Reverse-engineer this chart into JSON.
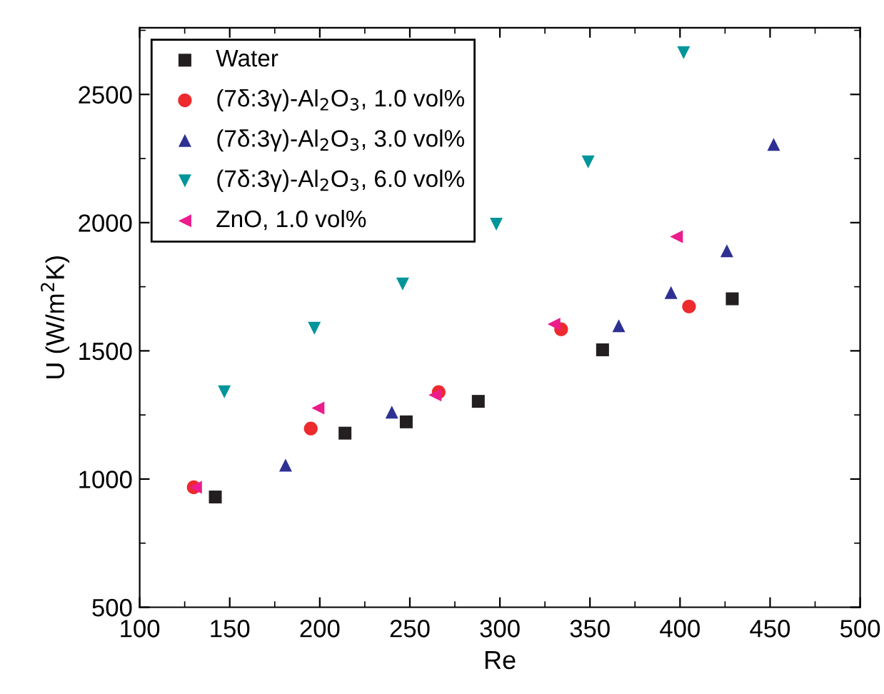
{
  "chart_data": {
    "type": "scatter",
    "xlabel": "Re",
    "ylabel": "U (W/m$^{2}$K)",
    "xlim": [
      100,
      500
    ],
    "xticks": [
      100,
      150,
      200,
      250,
      300,
      350,
      400,
      450,
      500
    ],
    "ylim": [
      500,
      2760
    ],
    "yticks": [
      500,
      1000,
      1500,
      2000,
      2500
    ],
    "grid": false,
    "legend": "top left",
    "series": [
      {
        "name": "Water",
        "color": "#231f20",
        "marker": "square",
        "x": [
          142,
          214,
          248,
          288,
          357,
          429
        ],
        "values": [
          930,
          1179,
          1223,
          1303,
          1504,
          1703
        ]
      },
      {
        "name": "(7δ:3γ)-Al$_{2}$O$_{3}$, 1.0 vol%",
        "color": "#ed2a2e",
        "marker": "circle",
        "x": [
          130,
          195,
          266,
          334,
          405
        ],
        "values": [
          968,
          1197,
          1339,
          1584,
          1673
        ]
      },
      {
        "name": "(7δ:3γ)-Al$_{2}$O$_{3}$, 3.0 vol%",
        "color": "#2e3192",
        "marker": "triangle",
        "x": [
          181,
          240,
          366,
          395,
          426,
          452
        ],
        "values": [
          1054,
          1261,
          1598,
          1727,
          1890,
          2305
        ]
      },
      {
        "name": "(7δ:3γ)-Al$_{2}$O$_{3}$, 6.0 vol%",
        "color": "#00959a",
        "marker": "triangle_down",
        "x": [
          147,
          197,
          246,
          298,
          349,
          402
        ],
        "values": [
          1340,
          1588,
          1761,
          1994,
          2237,
          2663
        ]
      },
      {
        "name": "ZnO, 1.0 vol%",
        "color": "#ec1c8c",
        "marker": "triangle_left",
        "x": [
          131,
          199,
          264,
          330,
          398
        ],
        "values": [
          968,
          1277,
          1328,
          1604,
          1945
        ]
      }
    ]
  }
}
